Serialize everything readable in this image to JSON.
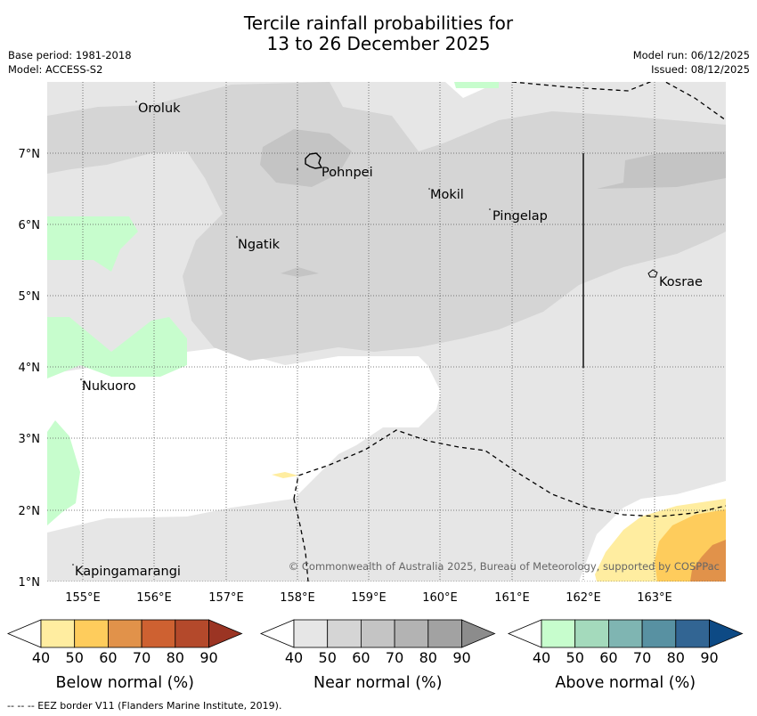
{
  "header": {
    "title_line1": "Tercile rainfall probabilities for",
    "title_line2": "13 to 26 December 2025",
    "base_period": "Base period: 1981-2018",
    "model": "Model: ACCESS-S2",
    "model_run": "Model run: 06/12/2025",
    "issued": "Issued: 08/12/2025"
  },
  "map": {
    "lon_labels": [
      "155°E",
      "156°E",
      "157°E",
      "158°E",
      "159°E",
      "160°E",
      "161°E",
      "162°E",
      "163°E"
    ],
    "lat_labels": [
      "7°N",
      "6°N",
      "5°N",
      "4°N",
      "3°N",
      "2°N",
      "1°N"
    ],
    "places": [
      "Oroluk",
      "Pohnpei",
      "Mokil",
      "Pingelap",
      "Ngatik",
      "Kosrae",
      "Nukuoro",
      "Kapingamarangi"
    ],
    "copyright": "© Commonwealth of Australia 2025, Bureau of Meteorology, supported by COSPPac"
  },
  "legends": [
    {
      "title": "Below normal (%)",
      "ticks": [
        "40",
        "50",
        "60",
        "70",
        "80",
        "90"
      ],
      "colors": [
        "#ffffff",
        "#ffeda0",
        "#fecc5c",
        "#e1924a",
        "#ce6131",
        "#b4492b",
        "#9b3423"
      ]
    },
    {
      "title": "Near normal (%)",
      "ticks": [
        "40",
        "50",
        "60",
        "70",
        "80",
        "90"
      ],
      "colors": [
        "#ffffff",
        "#e6e6e6",
        "#d5d5d5",
        "#c4c4c4",
        "#b3b3b3",
        "#a2a2a2",
        "#8c8c8c"
      ]
    },
    {
      "title": "Above normal (%)",
      "ticks": [
        "40",
        "50",
        "60",
        "70",
        "80",
        "90"
      ],
      "colors": [
        "#ffffff",
        "#c7fdcd",
        "#a4dabc",
        "#7fb5b2",
        "#5891a2",
        "#326593",
        "#0d4a85"
      ]
    }
  ],
  "footnote": "--  --  -- EEZ border V11 (Flanders Marine Institute, 2019)."
}
